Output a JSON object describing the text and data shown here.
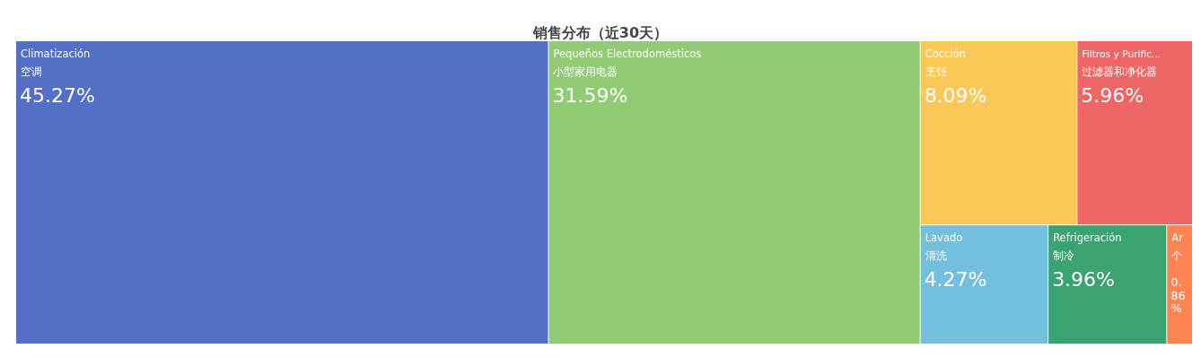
{
  "chart_data": {
    "type": "other",
    "title": "销售分布（近30天）",
    "categories": [
      "Climatización\n空调",
      "Pequeños Electrodomésticos\n小型家用电器",
      "Cocción\n烹饪",
      "Filtros y Purific...\n过滤器和净化器",
      "Lavado\n清洗",
      "Refrigeración\n制冷",
      "Ar\n个"
    ],
    "values": [
      45.27,
      31.59,
      8.09,
      5.96,
      4.27,
      3.96,
      0.86
    ],
    "value_labels": [
      "45.27%",
      "31.59%",
      "8.09%",
      "5.96%",
      "4.27%",
      "3.96%",
      "0.86%"
    ],
    "colors": [
      "#5470c6",
      "#91cc75",
      "#fac858",
      "#ee6666",
      "#73c0de",
      "#3ba272",
      "#fc8452"
    ]
  }
}
